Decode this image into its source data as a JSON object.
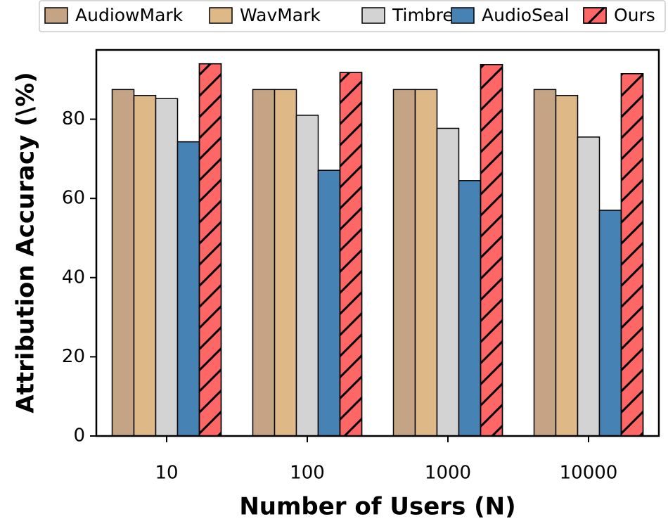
{
  "chart_data": {
    "type": "bar",
    "xlabel": "Number of Users (N)",
    "ylabel": "Attribution Accuracy (\\%)",
    "ylim": [
      0,
      97.5
    ],
    "yticks": [
      0,
      20,
      40,
      60,
      80
    ],
    "categories": [
      "10",
      "100",
      "1000",
      "10000"
    ],
    "series": [
      {
        "name": "AudiowMark",
        "color": "#c4a484",
        "hatch": false,
        "values": [
          87.5,
          87.5,
          87.5,
          87.5
        ]
      },
      {
        "name": "WavMark",
        "color": "#deb887",
        "hatch": false,
        "values": [
          86.0,
          87.5,
          87.5,
          86.0
        ]
      },
      {
        "name": "Timbre",
        "color": "#d3d3d3",
        "hatch": false,
        "values": [
          85.2,
          81.0,
          77.7,
          75.5
        ]
      },
      {
        "name": "AudioSeal",
        "color": "#4682b4",
        "hatch": false,
        "values": [
          74.3,
          67.1,
          64.5,
          57.0
        ]
      },
      {
        "name": "Ours",
        "color": "#ff6666",
        "hatch": true,
        "values": [
          94.0,
          91.8,
          93.8,
          91.5
        ]
      }
    ],
    "legend_position": "top",
    "grid": false
  }
}
